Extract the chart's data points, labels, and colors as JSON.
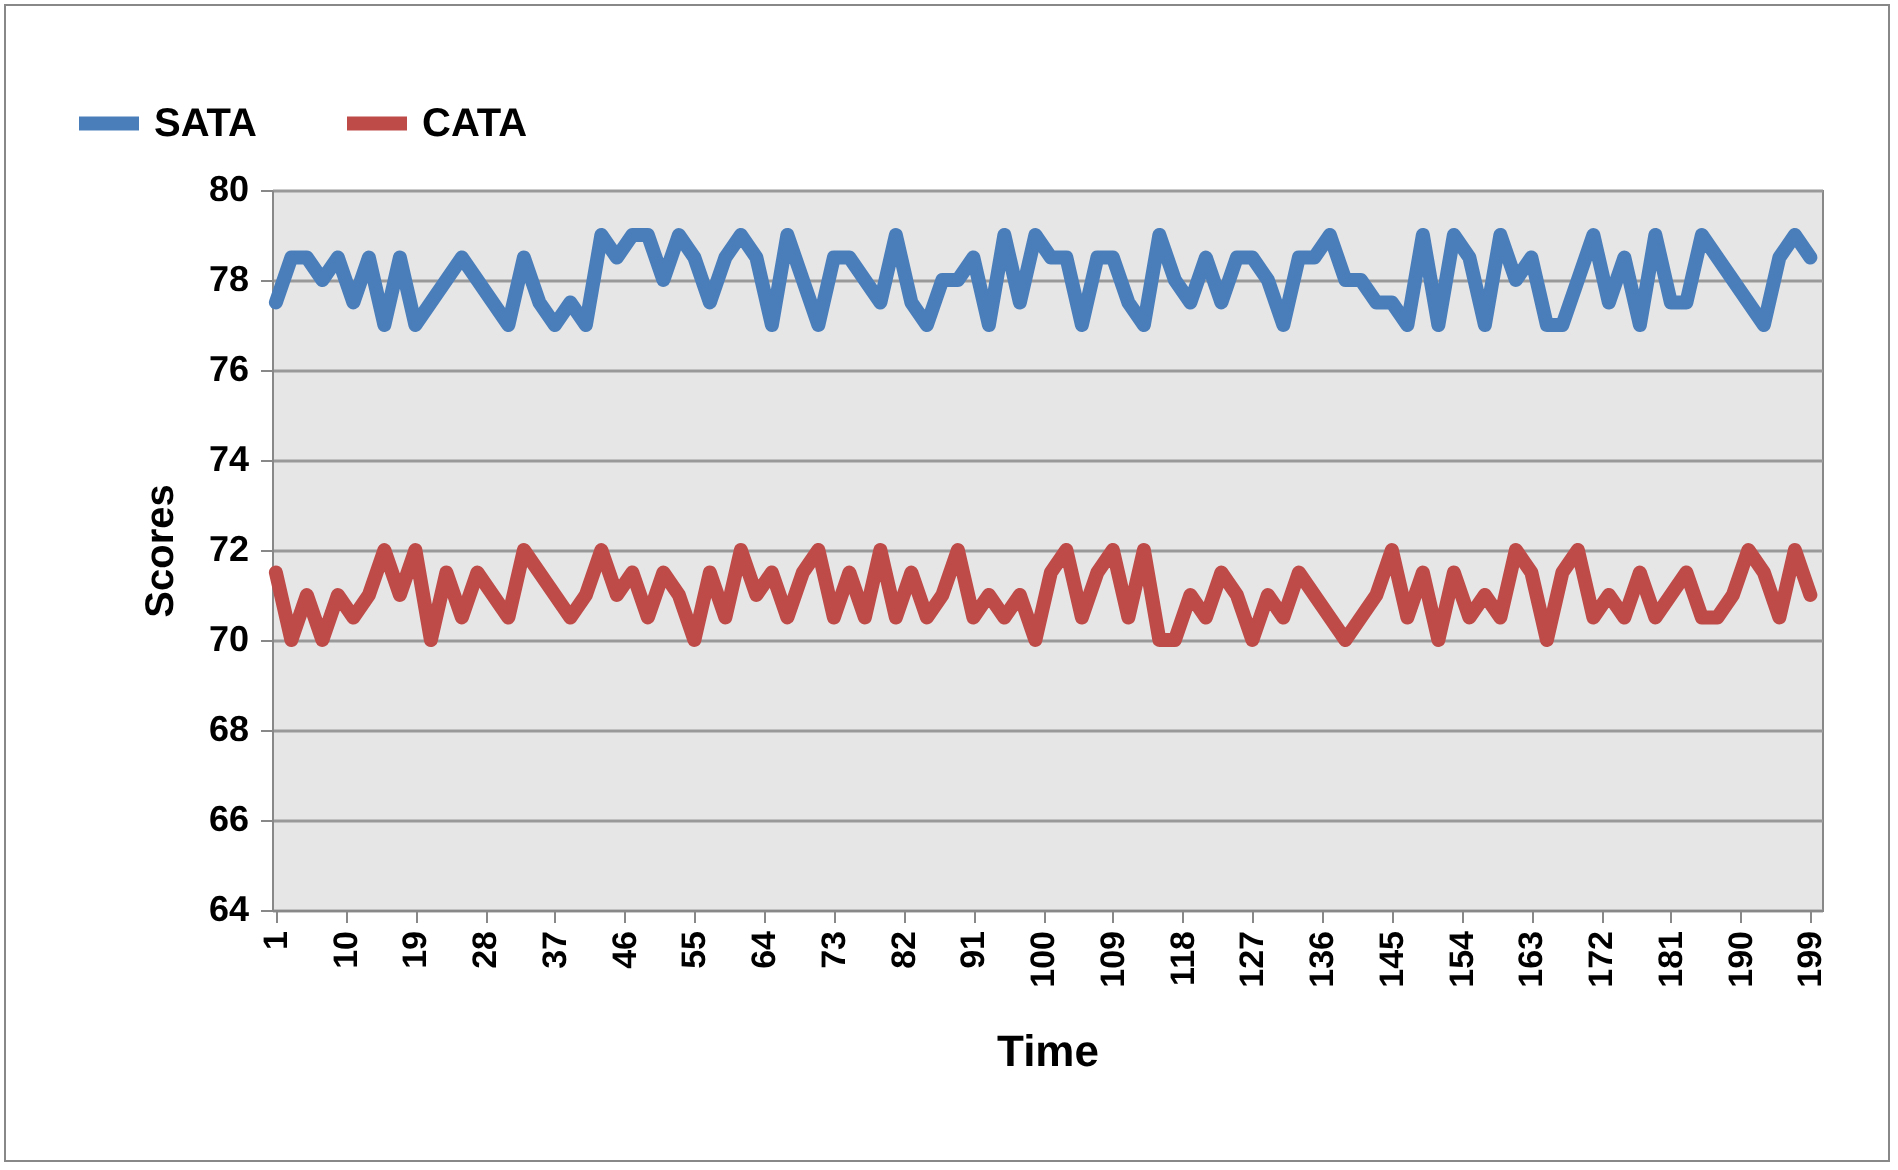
{
  "chart_data": {
    "type": "line",
    "xlabel": "Time",
    "ylabel": "Scores",
    "x": [
      1,
      3,
      5,
      7,
      9,
      11,
      13,
      15,
      17,
      19,
      21,
      23,
      25,
      27,
      29,
      31,
      33,
      35,
      37,
      39,
      41,
      43,
      45,
      47,
      49,
      51,
      53,
      55,
      57,
      59,
      61,
      63,
      65,
      67,
      69,
      71,
      73,
      75,
      77,
      79,
      81,
      83,
      85,
      87,
      89,
      91,
      93,
      95,
      97,
      99,
      101,
      103,
      105,
      107,
      109,
      111,
      113,
      115,
      117,
      119,
      121,
      123,
      125,
      127,
      129,
      131,
      133,
      135,
      137,
      139,
      141,
      143,
      145,
      147,
      149,
      151,
      153,
      155,
      157,
      159,
      161,
      163,
      165,
      167,
      169,
      171,
      173,
      175,
      177,
      179,
      181,
      183,
      185,
      187,
      189,
      191,
      193,
      195,
      197,
      199
    ],
    "series": [
      {
        "name": "SATA",
        "color": "#4a7ebb",
        "values": [
          77.5,
          78.5,
          78.5,
          78,
          78.5,
          77.5,
          78.5,
          77,
          78.5,
          77,
          77.5,
          78,
          78.5,
          78,
          77.5,
          77,
          78.5,
          77.5,
          77,
          77.5,
          77,
          79,
          78.5,
          79,
          79,
          78,
          79,
          78.5,
          77.5,
          78.5,
          79,
          78.5,
          77,
          79,
          78,
          77,
          78.5,
          78.5,
          78,
          77.5,
          79,
          77.5,
          77,
          78,
          78,
          78.5,
          77,
          79,
          77.5,
          79,
          78.5,
          78.5,
          77,
          78.5,
          78.5,
          77.5,
          77,
          79,
          78,
          77.5,
          78.5,
          77.5,
          78.5,
          78.5,
          78,
          77,
          78.5,
          78.5,
          79,
          78,
          78,
          77.5,
          77.5,
          77,
          79,
          77,
          79,
          78.5,
          77,
          79,
          78,
          78.5,
          77,
          77,
          78,
          79,
          77.5,
          78.5,
          77,
          79,
          77.5,
          77.5,
          79,
          78.5,
          78,
          77.5,
          77,
          78.5,
          79,
          78.5
        ]
      },
      {
        "name": "CATA",
        "color": "#be4b48",
        "values": [
          71.5,
          70,
          71,
          70,
          71,
          70.5,
          71,
          72,
          71,
          72,
          70,
          71.5,
          70.5,
          71.5,
          71,
          70.5,
          72,
          71.5,
          71,
          70.5,
          71,
          72,
          71,
          71.5,
          70.5,
          71.5,
          71,
          70,
          71.5,
          70.5,
          72,
          71,
          71.5,
          70.5,
          71.5,
          72,
          70.5,
          71.5,
          70.5,
          72,
          70.5,
          71.5,
          70.5,
          71,
          72,
          70.5,
          71,
          70.5,
          71,
          70,
          71.5,
          72,
          70.5,
          71.5,
          72,
          70.5,
          72,
          70,
          70,
          71,
          70.5,
          71.5,
          71,
          70,
          71,
          70.5,
          71.5,
          71,
          70.5,
          70,
          70.5,
          71,
          72,
          70.5,
          71.5,
          70,
          71.5,
          70.5,
          71,
          70.5,
          72,
          71.5,
          70,
          71.5,
          72,
          70.5,
          71,
          70.5,
          71.5,
          70.5,
          71,
          71.5,
          70.5,
          70.5,
          71,
          72,
          71.5,
          70.5,
          72,
          71
        ]
      }
    ],
    "xlim": [
      0.5,
      200.5
    ],
    "xticks": [
      1,
      10,
      19,
      28,
      37,
      46,
      55,
      64,
      73,
      82,
      91,
      100,
      109,
      118,
      127,
      136,
      145,
      154,
      163,
      172,
      181,
      190,
      199
    ],
    "ylim": [
      64,
      80
    ],
    "yticks": [
      64,
      66,
      68,
      70,
      72,
      74,
      76,
      78,
      80
    ],
    "grid": "y",
    "legend": "top left",
    "line_style": "solid"
  }
}
